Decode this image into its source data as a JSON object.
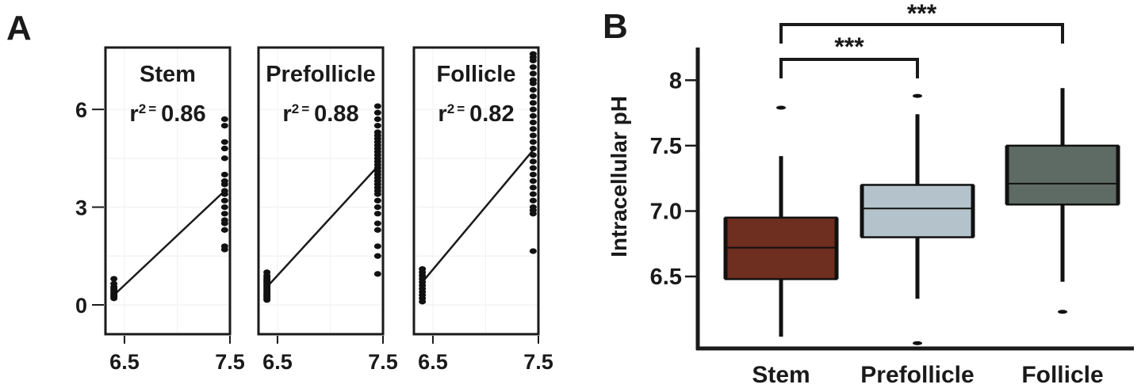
{
  "chart_data": [
    {
      "panel_label": "A",
      "type": "scatter",
      "panels": [
        {
          "title": "Stem",
          "r2_label": "r",
          "r2_sup": "2",
          "r2_eq": "=",
          "r2_value": "0.86",
          "fit": {
            "x0": 6.4,
            "y0": 0.3,
            "x1": 7.45,
            "y1": 3.5
          },
          "points_low": {
            "x": 6.4,
            "y": [
              0.2,
              0.25,
              0.3,
              0.35,
              0.4,
              0.45,
              0.5,
              0.55,
              0.65,
              0.8
            ]
          },
          "points_high": {
            "x": 7.45,
            "y": [
              1.7,
              1.8,
              2.3,
              2.5,
              2.6,
              2.8,
              3.0,
              3.2,
              3.4,
              3.5,
              3.7,
              3.8,
              4.0,
              4.5,
              4.8,
              5.0,
              5.5,
              5.7
            ]
          }
        },
        {
          "title": "Prefollicle",
          "r2_label": "r",
          "r2_sup": "2",
          "r2_eq": "=",
          "r2_value": "0.88",
          "fit": {
            "x0": 6.4,
            "y0": 0.55,
            "x1": 7.45,
            "y1": 4.25
          },
          "points_low": {
            "x": 6.4,
            "y": [
              0.15,
              0.2,
              0.25,
              0.3,
              0.35,
              0.4,
              0.45,
              0.5,
              0.55,
              0.6,
              0.65,
              0.7,
              0.75,
              0.8,
              0.85,
              0.9,
              1.0
            ]
          },
          "points_high": {
            "x": 7.45,
            "y": [
              0.95,
              1.5,
              1.8,
              2.3,
              2.5,
              2.8,
              3.0,
              3.2,
              3.4,
              3.5,
              3.6,
              3.7,
              3.8,
              3.9,
              4.0,
              4.1,
              4.2,
              4.3,
              4.4,
              4.5,
              4.6,
              4.7,
              4.8,
              4.9,
              5.0,
              5.1,
              5.2,
              5.3,
              5.5,
              5.7,
              5.9,
              6.1
            ]
          }
        },
        {
          "title": "Follicle",
          "r2_label": "r",
          "r2_sup": "2",
          "r2_eq": "=",
          "r2_value": "0.82",
          "fit": {
            "x0": 6.4,
            "y0": 0.7,
            "x1": 7.45,
            "y1": 4.75
          },
          "points_low": {
            "x": 6.4,
            "y": [
              0.1,
              0.2,
              0.3,
              0.4,
              0.5,
              0.6,
              0.7,
              0.8,
              0.9,
              1.0,
              1.1
            ]
          },
          "points_high": {
            "x": 7.45,
            "y": [
              1.65,
              2.8,
              2.9,
              3.0,
              3.2,
              3.4,
              3.6,
              3.8,
              4.0,
              4.2,
              4.4,
              4.6,
              4.8,
              5.0,
              5.2,
              5.4,
              5.6,
              5.8,
              6.0,
              6.2,
              6.4,
              6.6,
              6.8,
              6.9,
              7.1,
              7.3,
              7.5,
              7.6,
              7.7
            ]
          }
        }
      ],
      "xlim": [
        6.32,
        7.5
      ],
      "ylim": [
        -0.9,
        7.9
      ],
      "xticks": [
        "6.5",
        "7.5"
      ],
      "yticks": [
        "0",
        "3",
        "6"
      ],
      "ytick_values": [
        0,
        3,
        6
      ]
    },
    {
      "panel_label": "B",
      "type": "box",
      "ylabel": "Intracellular pH",
      "ylim": [
        5.95,
        8.25
      ],
      "yticks": [
        "6.5",
        "7.0",
        "7.5",
        "8"
      ],
      "ytick_values": [
        6.5,
        7.0,
        7.5,
        8.0
      ],
      "categories": [
        "Stem",
        "Prefollicle",
        "Follicle"
      ],
      "boxes": [
        {
          "name": "Stem",
          "color": "#6e2e20",
          "whisker_low": 6.04,
          "q1": 6.48,
          "median": 6.72,
          "q3": 6.95,
          "whisker_high": 7.42,
          "outliers": [
            7.79
          ]
        },
        {
          "name": "Prefollicle",
          "color": "#b4c3cb",
          "whisker_low": 6.33,
          "q1": 6.8,
          "median": 7.02,
          "q3": 7.2,
          "whisker_high": 7.74,
          "outliers": [
            7.88,
            5.99
          ]
        },
        {
          "name": "Follicle",
          "color": "#5e6b64",
          "whisker_low": 6.46,
          "q1": 7.05,
          "median": 7.21,
          "q3": 7.5,
          "whisker_high": 7.94,
          "outliers": [
            6.23
          ]
        }
      ],
      "significance": [
        {
          "from": "Stem",
          "to": "Prefollicle",
          "label": "***"
        },
        {
          "from": "Stem",
          "to": "Follicle",
          "label": "***"
        }
      ]
    }
  ]
}
